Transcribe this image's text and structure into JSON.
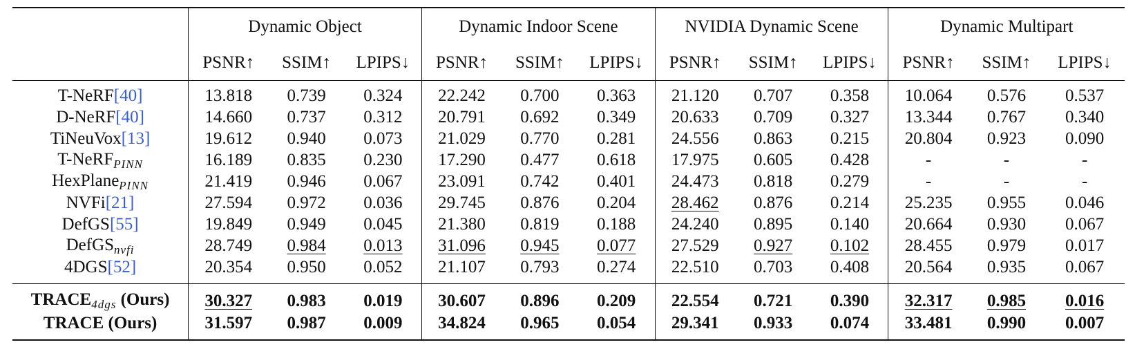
{
  "groups": [
    {
      "name": "Dynamic Object"
    },
    {
      "name": "Dynamic Indoor Scene"
    },
    {
      "name": "NVIDIA Dynamic Scene"
    },
    {
      "name": "Dynamic Multipart"
    }
  ],
  "metrics": [
    "PSNR↑",
    "SSIM↑",
    "LPIPS↓"
  ],
  "baselines": [
    {
      "name": "T-NeRF",
      "cite": "[40]",
      "sub": "",
      "values": [
        "13.818",
        "0.739",
        "0.324",
        "22.242",
        "0.700",
        "0.363",
        "21.120",
        "0.707",
        "0.358",
        "10.064",
        "0.576",
        "0.537"
      ],
      "underline": []
    },
    {
      "name": "D-NeRF",
      "cite": "[40]",
      "sub": "",
      "values": [
        "14.660",
        "0.737",
        "0.312",
        "20.791",
        "0.692",
        "0.349",
        "20.633",
        "0.709",
        "0.327",
        "13.344",
        "0.767",
        "0.340"
      ],
      "underline": []
    },
    {
      "name": "TiNeuVox",
      "cite": "[13]",
      "sub": "",
      "values": [
        "19.612",
        "0.940",
        "0.073",
        "21.029",
        "0.770",
        "0.281",
        "24.556",
        "0.863",
        "0.215",
        "20.804",
        "0.923",
        "0.090"
      ],
      "underline": []
    },
    {
      "name": "T-NeRF",
      "cite": "",
      "sub": "PINN",
      "values": [
        "16.189",
        "0.835",
        "0.230",
        "17.290",
        "0.477",
        "0.618",
        "17.975",
        "0.605",
        "0.428",
        "-",
        "-",
        "-"
      ],
      "underline": []
    },
    {
      "name": "HexPlane",
      "cite": "",
      "sub": "PINN",
      "values": [
        "21.419",
        "0.946",
        "0.067",
        "23.091",
        "0.742",
        "0.401",
        "24.473",
        "0.818",
        "0.279",
        "-",
        "-",
        "-"
      ],
      "underline": []
    },
    {
      "name": "NVFi",
      "cite": "[21]",
      "sub": "",
      "values": [
        "27.594",
        "0.972",
        "0.036",
        "29.745",
        "0.876",
        "0.204",
        "28.462",
        "0.876",
        "0.214",
        "25.235",
        "0.955",
        "0.046"
      ],
      "underline": [
        6
      ]
    },
    {
      "name": "DefGS",
      "cite": "[55]",
      "sub": "",
      "values": [
        "19.849",
        "0.949",
        "0.045",
        "21.380",
        "0.819",
        "0.188",
        "24.240",
        "0.895",
        "0.140",
        "20.664",
        "0.930",
        "0.067"
      ],
      "underline": []
    },
    {
      "name": "DefGS",
      "cite": "",
      "sub": "nvfi",
      "values": [
        "28.749",
        "0.984",
        "0.013",
        "31.096",
        "0.945",
        "0.077",
        "27.529",
        "0.927",
        "0.102",
        "28.455",
        "0.979",
        "0.017"
      ],
      "underline": [
        1,
        2,
        3,
        4,
        5,
        7,
        8
      ]
    },
    {
      "name": "4DGS",
      "cite": "[52]",
      "sub": "",
      "values": [
        "20.354",
        "0.950",
        "0.052",
        "21.107",
        "0.793",
        "0.274",
        "22.510",
        "0.703",
        "0.408",
        "20.564",
        "0.935",
        "0.067"
      ],
      "underline": []
    }
  ],
  "ours": [
    {
      "name": "TRACE",
      "sub": "4dgs",
      "suffix": " (Ours)",
      "values": [
        "30.327",
        "0.983",
        "0.019",
        "30.607",
        "0.896",
        "0.209",
        "22.554",
        "0.721",
        "0.390",
        "32.317",
        "0.985",
        "0.016"
      ],
      "underline": [
        0,
        9,
        10,
        11
      ]
    },
    {
      "name": "TRACE",
      "sub": "",
      "suffix": " (Ours)",
      "values": [
        "31.597",
        "0.987",
        "0.009",
        "34.824",
        "0.965",
        "0.054",
        "29.341",
        "0.933",
        "0.074",
        "33.481",
        "0.990",
        "0.007"
      ],
      "underline": []
    }
  ]
}
